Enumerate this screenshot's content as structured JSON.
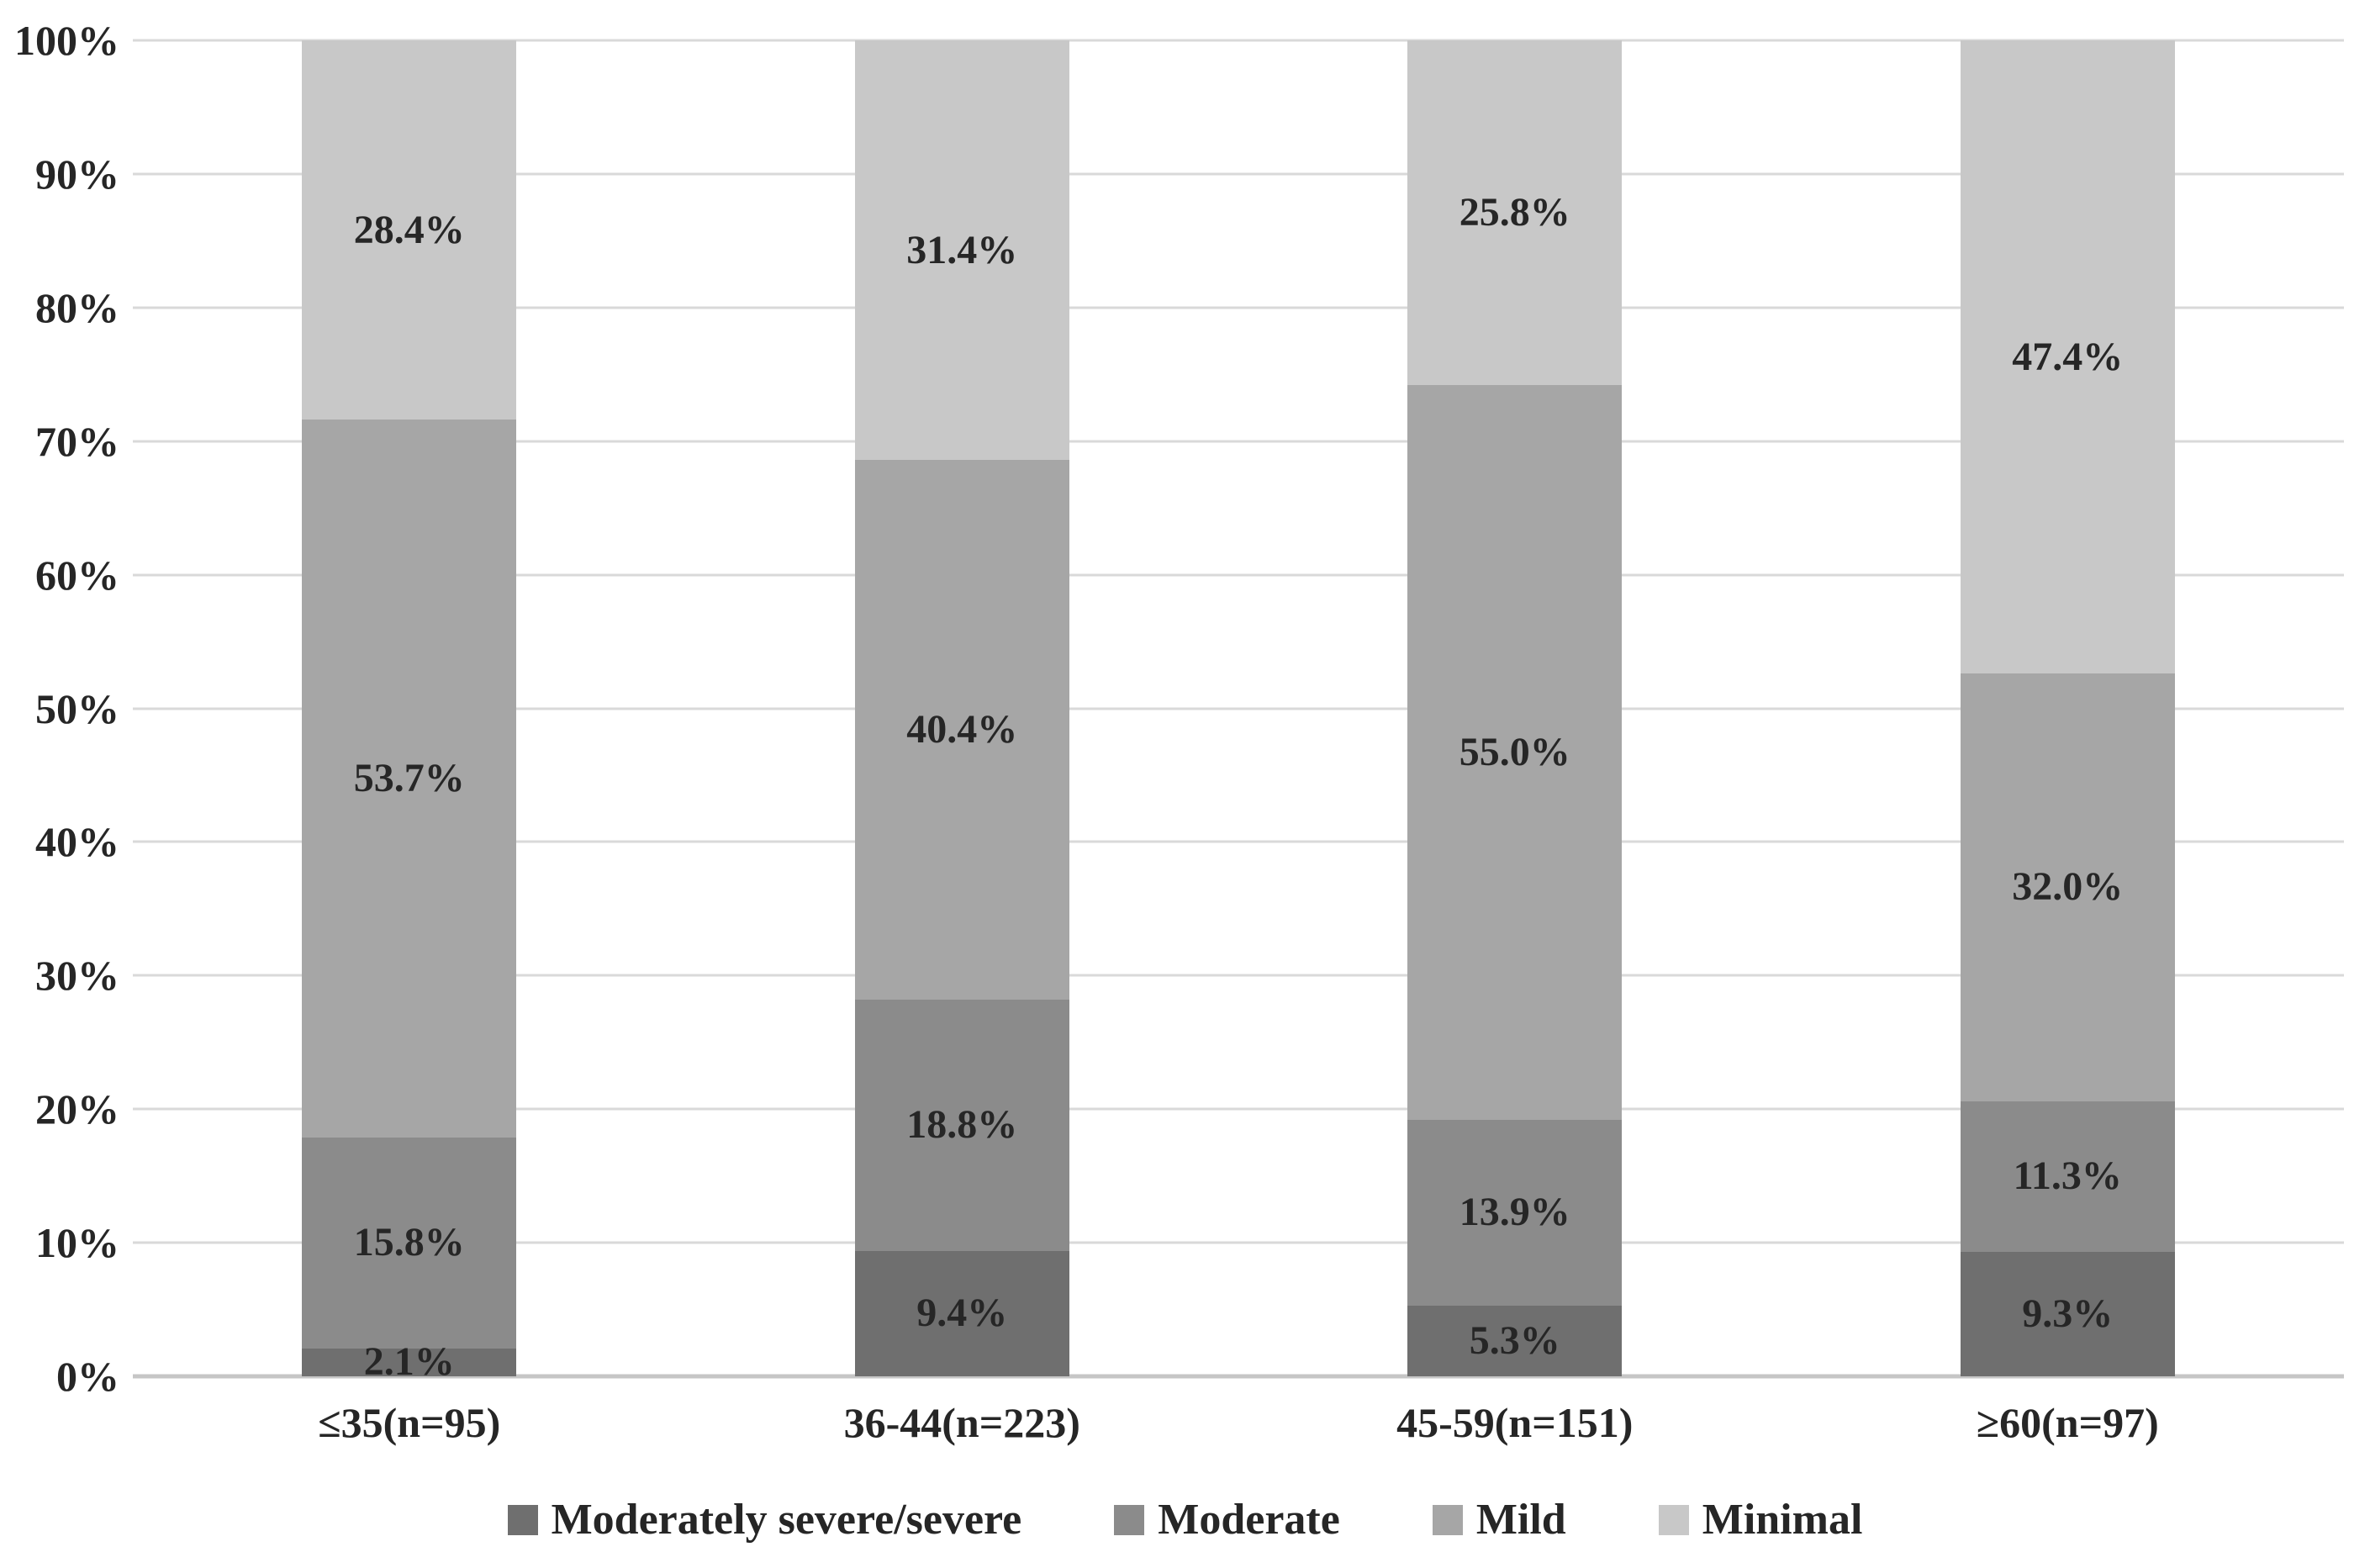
{
  "chart_data": {
    "type": "bar",
    "variant": "stacked-100-percent",
    "orientation": "vertical",
    "categories": [
      "≤35(n=95)",
      "36-44(n=223)",
      "45-59(n=151)",
      "≥60(n=97)"
    ],
    "series": [
      {
        "name": "Moderately severe/severe",
        "color": "#6f6f6f",
        "values": [
          2.1,
          9.4,
          5.3,
          9.3
        ],
        "labels": [
          "2.1%",
          "9.4%",
          "5.3%",
          "9.3%"
        ]
      },
      {
        "name": "Moderate",
        "color": "#8b8b8b",
        "values": [
          15.8,
          18.8,
          13.9,
          11.3
        ],
        "labels": [
          "15.8%",
          "18.8%",
          "13.9%",
          "11.3%"
        ]
      },
      {
        "name": "Mild",
        "color": "#a6a6a6",
        "values": [
          53.7,
          40.4,
          55.0,
          32.0
        ],
        "labels": [
          "53.7%",
          "40.4%",
          "55.0%",
          "32.0%"
        ]
      },
      {
        "name": "Minimal",
        "color": "#c8c8c8",
        "values": [
          28.4,
          31.4,
          25.8,
          47.4
        ],
        "labels": [
          "28.4%",
          "31.4%",
          "25.8%",
          "47.4%"
        ]
      }
    ],
    "y_axis": {
      "min": 0,
      "max": 100,
      "step": 10,
      "tick_labels": [
        "0%",
        "10%",
        "20%",
        "30%",
        "40%",
        "50%",
        "60%",
        "70%",
        "80%",
        "90%",
        "100%"
      ]
    },
    "x_axis": {
      "tick_labels": [
        "≤35(n=95)",
        "36-44(n=223)",
        "45-59(n=151)",
        "≥60(n=97)"
      ]
    },
    "legend": {
      "position": "bottom",
      "items": [
        {
          "label": "Moderately severe/severe",
          "color": "#6f6f6f"
        },
        {
          "label": "Moderate",
          "color": "#8b8b8b"
        },
        {
          "label": "Mild",
          "color": "#a6a6a6"
        },
        {
          "label": "Minimal",
          "color": "#c8c8c8"
        }
      ]
    },
    "grid": true
  },
  "style": {
    "background": "#ffffff",
    "label_color": "#262626",
    "gridline_color": "#d9d9d9",
    "axis_line_color": "#c6c6c6"
  }
}
